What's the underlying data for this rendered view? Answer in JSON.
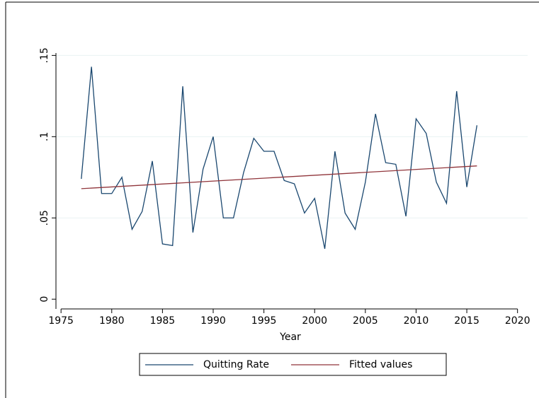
{
  "chart_data": {
    "type": "line",
    "x_label": "Year",
    "xlim": [
      1974.5,
      2021
    ],
    "xticks": [
      1975,
      1980,
      1985,
      1990,
      1995,
      2000,
      2005,
      2010,
      2015,
      2020
    ],
    "ylim": [
      -0.006,
      0.158
    ],
    "yticks": [
      0,
      {
        "value": 0.05,
        "label": ".05"
      },
      {
        "value": 0.1,
        "label": ".1"
      },
      {
        "value": 0.15,
        "label": ".15"
      }
    ],
    "grid": true,
    "series": [
      {
        "name": "Quitting Rate",
        "color": "#1a476f",
        "x": [
          1977,
          1978,
          1979,
          1980,
          1981,
          1982,
          1983,
          1984,
          1985,
          1986,
          1987,
          1988,
          1989,
          1990,
          1991,
          1992,
          1993,
          1994,
          1995,
          1996,
          1997,
          1998,
          1999,
          2000,
          2001,
          2002,
          2003,
          2004,
          2005,
          2006,
          2007,
          2008,
          2009,
          2010,
          2011,
          2012,
          2013,
          2014,
          2015,
          2016
        ],
        "values": [
          0.074,
          0.143,
          0.065,
          0.065,
          0.075,
          0.043,
          0.054,
          0.085,
          0.034,
          0.033,
          0.131,
          0.041,
          0.08,
          0.1,
          0.05,
          0.05,
          0.078,
          0.099,
          0.091,
          0.091,
          0.073,
          0.071,
          0.053,
          0.062,
          0.031,
          0.091,
          0.053,
          0.043,
          0.072,
          0.114,
          0.084,
          0.083,
          0.051,
          0.111,
          0.102,
          0.072,
          0.059,
          0.128,
          0.069,
          0.107
        ]
      },
      {
        "name": "Fitted values",
        "color": "#90353b",
        "x": [
          1977,
          2016
        ],
        "values": [
          0.068,
          0.082
        ]
      }
    ]
  }
}
